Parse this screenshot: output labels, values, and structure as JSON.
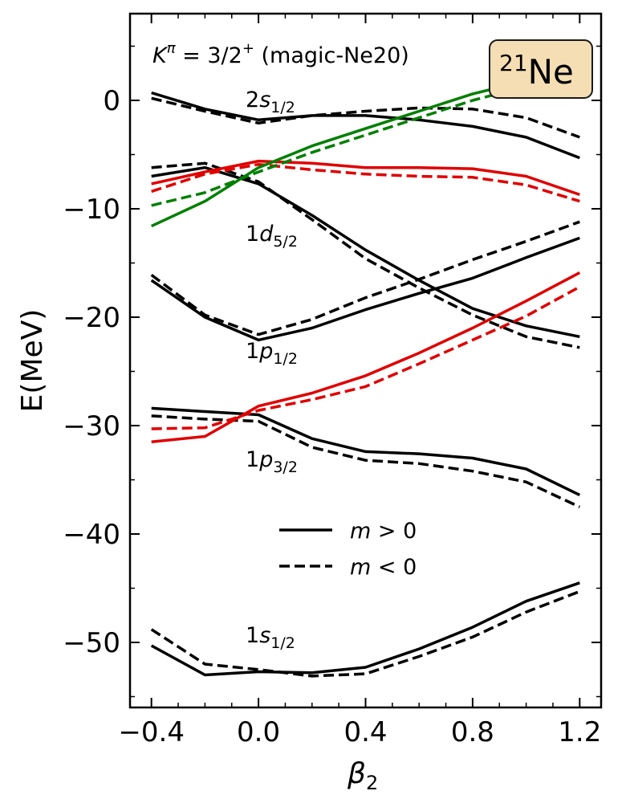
{
  "chart_data": {
    "type": "line",
    "xlabel_main": "β",
    "xlabel_sub": "2",
    "ylabel": "E(MeV)",
    "xlim": [
      -0.48,
      1.28
    ],
    "ylim": [
      -56,
      8
    ],
    "xticks": [
      -0.4,
      0.0,
      0.4,
      0.8,
      1.2
    ],
    "xtick_labels": [
      "−0.4",
      "0.0",
      "0.4",
      "0.8",
      "1.2"
    ],
    "yticks": [
      0,
      -10,
      -20,
      -30,
      -40,
      -50
    ],
    "ytick_labels": [
      "0",
      "−10",
      "−20",
      "−30",
      "−40",
      "−50"
    ],
    "header_label": {
      "k": "K",
      "pi": "π",
      "value": " = 3/2",
      "plus": "+",
      "model": " (magic-Ne20)"
    },
    "nucleus_label": {
      "mass": "21",
      "element": "Ne"
    },
    "level_labels": [
      {
        "n": "2",
        "l": "s",
        "j": "1/2"
      },
      {
        "n": "1",
        "l": "d",
        "j": "5/2"
      },
      {
        "n": "1",
        "l": "p",
        "j": "1/2"
      },
      {
        "n": "1",
        "l": "p",
        "j": "3/2"
      },
      {
        "n": "1",
        "l": "s",
        "j": "1/2"
      }
    ],
    "legend": [
      {
        "style": "solid",
        "var": "m",
        "rel": " > 0"
      },
      {
        "style": "dashed",
        "var": "m",
        "rel": " < 0"
      }
    ],
    "x": [
      -0.4,
      -0.2,
      0.0,
      0.2,
      0.4,
      0.6,
      0.8,
      1.0,
      1.2
    ],
    "series": [
      {
        "color": "#000000",
        "style": "solid",
        "values": [
          0.7,
          -0.8,
          -1.8,
          -1.4,
          -1.4,
          -1.8,
          -2.4,
          -3.4,
          -5.3
        ]
      },
      {
        "color": "#000000",
        "style": "dashed",
        "values": [
          0.2,
          -1.0,
          -2.1,
          -1.4,
          -1.0,
          -0.7,
          -0.8,
          -1.6,
          -3.4
        ]
      },
      {
        "color": "#000000",
        "style": "solid",
        "values": [
          -7.0,
          -6.2,
          -7.7,
          -10.6,
          -13.8,
          -16.6,
          -19.2,
          -20.8,
          -21.8
        ]
      },
      {
        "color": "#000000",
        "style": "dashed",
        "values": [
          -6.2,
          -5.8,
          -7.5,
          -11.0,
          -14.6,
          -17.3,
          -19.8,
          -21.8,
          -22.8
        ]
      },
      {
        "color": "#000000",
        "style": "solid",
        "values": [
          -16.6,
          -20.0,
          -22.1,
          -21.0,
          -19.3,
          -17.8,
          -16.4,
          -14.5,
          -12.7
        ]
      },
      {
        "color": "#000000",
        "style": "dashed",
        "values": [
          -16.1,
          -19.8,
          -21.6,
          -20.2,
          -18.2,
          -16.5,
          -14.7,
          -13.0,
          -11.2
        ]
      },
      {
        "color": "#000000",
        "style": "solid",
        "values": [
          -28.4,
          -28.7,
          -29.0,
          -31.2,
          -32.4,
          -32.6,
          -33.0,
          -34.0,
          -36.4
        ]
      },
      {
        "color": "#000000",
        "style": "dashed",
        "values": [
          -29.1,
          -29.4,
          -29.6,
          -32.0,
          -33.2,
          -33.5,
          -34.2,
          -35.2,
          -37.5
        ]
      },
      {
        "color": "#000000",
        "style": "solid",
        "values": [
          -50.3,
          -53.0,
          -52.7,
          -52.8,
          -52.3,
          -50.6,
          -48.6,
          -46.2,
          -44.5
        ]
      },
      {
        "color": "#000000",
        "style": "dashed",
        "values": [
          -48.8,
          -52.0,
          -52.5,
          -53.1,
          -52.9,
          -51.3,
          -49.5,
          -47.2,
          -45.3
        ]
      },
      {
        "color": "#e00000",
        "style": "solid",
        "values": [
          -7.7,
          -6.6,
          -5.6,
          -5.8,
          -6.2,
          -6.2,
          -6.3,
          -7.0,
          -8.7
        ]
      },
      {
        "color": "#e00000",
        "style": "dashed",
        "values": [
          -8.4,
          -6.8,
          -5.9,
          -6.4,
          -6.8,
          -7.0,
          -7.1,
          -7.8,
          -9.3
        ]
      },
      {
        "color": "#e00000",
        "style": "solid",
        "values": [
          -31.5,
          -31.0,
          -28.2,
          -27.0,
          -25.4,
          -23.3,
          -21.0,
          -18.5,
          -15.9
        ]
      },
      {
        "color": "#e00000",
        "style": "dashed",
        "values": [
          -30.3,
          -30.2,
          -28.6,
          -27.6,
          -26.4,
          -24.3,
          -22.1,
          -19.9,
          -17.2
        ]
      },
      {
        "color": "#008000",
        "style": "solid",
        "values": [
          -11.6,
          -9.3,
          -6.2,
          -4.2,
          -2.6,
          -1.0,
          0.6,
          1.8,
          2.8
        ]
      },
      {
        "color": "#008000",
        "style": "dashed",
        "values": [
          -9.7,
          -8.5,
          -6.6,
          -4.8,
          -3.2,
          -1.6,
          0.0,
          1.3,
          2.3
        ]
      }
    ],
    "grid": false,
    "legend_position": "lower-center"
  },
  "colors": {
    "nucleus_box_fill": "#f5deb3",
    "nucleus_box_stroke": "#1a1a1a"
  }
}
